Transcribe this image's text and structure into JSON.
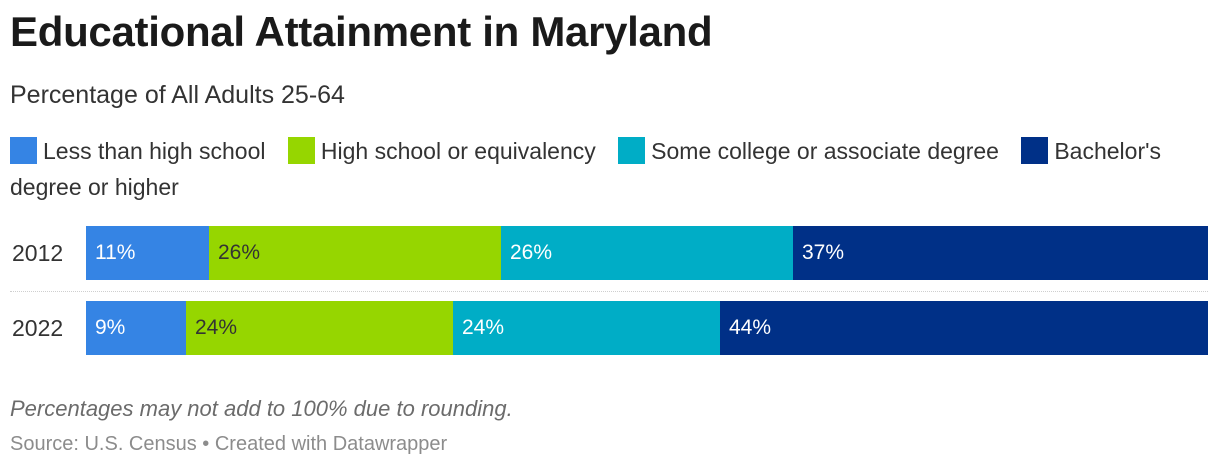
{
  "chart_data": {
    "type": "bar",
    "orientation": "horizontal",
    "stacked": true,
    "title": "Educational Attainment in Maryland",
    "subtitle": "Percentage of All Adults 25-64",
    "categories": [
      "2012",
      "2022"
    ],
    "series": [
      {
        "name": "Less than high school",
        "values": [
          11,
          9
        ],
        "labels": [
          "11%",
          "9%"
        ],
        "color": "#3584e4",
        "label_color": "#ffffff"
      },
      {
        "name": "High school or equivalency",
        "values": [
          26,
          24
        ],
        "labels": [
          "26%",
          "24%"
        ],
        "color": "#96d600",
        "label_color": "#333333"
      },
      {
        "name": "Some college or associate degree",
        "values": [
          26,
          24
        ],
        "labels": [
          "26%",
          "24%"
        ],
        "color": "#00adc6",
        "label_color": "#ffffff"
      },
      {
        "name": "Bachelor's degree or higher",
        "values": [
          37,
          44
        ],
        "labels": [
          "37%",
          "44%"
        ],
        "color": "#003087",
        "label_color": "#ffffff"
      }
    ],
    "legend_position": "top",
    "grid": false
  },
  "footer": {
    "note": "Percentages may not add to 100% due to rounding.",
    "source": "Source: U.S. Census • Created with Datawrapper"
  }
}
